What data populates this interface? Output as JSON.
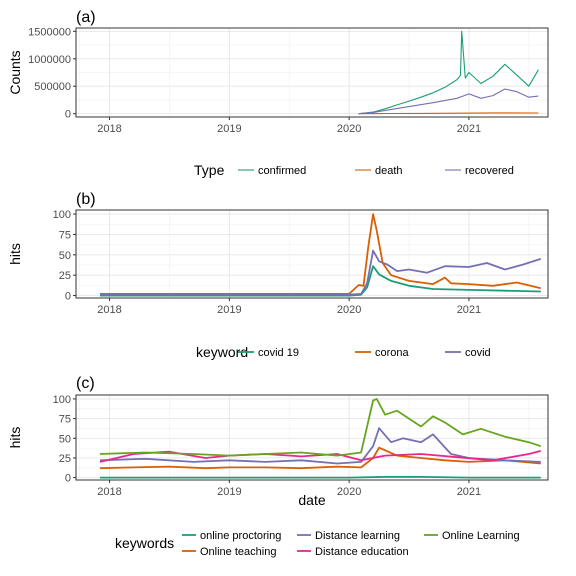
{
  "chart_data": [
    {
      "panel": "(a)",
      "type": "line",
      "ylabel": "Counts",
      "xlabel": "",
      "x_ticks": [
        "2018",
        "2019",
        "2020",
        "2021"
      ],
      "y_ticks": [
        "0",
        "500000",
        "1000000",
        "1500000"
      ],
      "xlim": [
        2017.72,
        2021.66
      ],
      "ylim": [
        -60000,
        1560000
      ],
      "legend": {
        "title": "Type",
        "placement": "bottom"
      },
      "series": [
        {
          "name": "confirmed",
          "color": "#1b9e77",
          "x": [
            2020.08,
            2020.2,
            2020.3,
            2020.4,
            2020.5,
            2020.6,
            2020.7,
            2020.8,
            2020.9,
            2020.93,
            2020.94,
            2020.97,
            2021.0,
            2021.1,
            2021.2,
            2021.3,
            2021.4,
            2021.5,
            2021.58
          ],
          "y": [
            0,
            30000,
            90000,
            160000,
            230000,
            300000,
            380000,
            480000,
            620000,
            700000,
            1500000,
            650000,
            750000,
            550000,
            680000,
            900000,
            700000,
            500000,
            800000
          ]
        },
        {
          "name": "death",
          "color": "#d95f02",
          "x": [
            2020.08,
            2020.3,
            2020.6,
            2020.9,
            2021.2,
            2021.58
          ],
          "y": [
            0,
            3000,
            5000,
            10000,
            15000,
            12000
          ]
        },
        {
          "name": "recovered",
          "color": "#7570b3",
          "x": [
            2020.08,
            2020.2,
            2020.3,
            2020.5,
            2020.7,
            2020.9,
            2021.0,
            2021.1,
            2021.2,
            2021.3,
            2021.4,
            2021.5,
            2021.58
          ],
          "y": [
            0,
            20000,
            60000,
            130000,
            200000,
            280000,
            360000,
            280000,
            330000,
            450000,
            400000,
            300000,
            320000
          ]
        }
      ]
    },
    {
      "panel": "(b)",
      "type": "line",
      "ylabel": "hits",
      "xlabel": "",
      "x_ticks": [
        "2018",
        "2019",
        "2020",
        "2021"
      ],
      "y_ticks": [
        "0",
        "25",
        "50",
        "75",
        "100"
      ],
      "xlim": [
        2017.72,
        2021.66
      ],
      "ylim": [
        -3,
        105
      ],
      "legend": {
        "title": "keyword",
        "placement": "bottom"
      },
      "series": [
        {
          "name": "covid 19",
          "color": "#1b9e77",
          "x": [
            2017.92,
            2020.0,
            2020.1,
            2020.15,
            2020.2,
            2020.25,
            2020.35,
            2020.5,
            2020.7,
            2021.0,
            2021.3,
            2021.6
          ],
          "y": [
            0,
            0,
            1,
            10,
            36,
            26,
            18,
            12,
            8,
            7,
            6,
            5
          ]
        },
        {
          "name": "corona",
          "color": "#d95f02",
          "x": [
            2017.92,
            2020.0,
            2020.08,
            2020.12,
            2020.16,
            2020.2,
            2020.23,
            2020.28,
            2020.35,
            2020.5,
            2020.7,
            2020.8,
            2020.85,
            2021.0,
            2021.2,
            2021.4,
            2021.6
          ],
          "y": [
            2,
            2,
            13,
            12,
            60,
            100,
            80,
            40,
            25,
            18,
            14,
            22,
            15,
            14,
            12,
            16,
            9
          ]
        },
        {
          "name": "covid",
          "color": "#7570b3",
          "x": [
            2017.92,
            2020.0,
            2020.1,
            2020.15,
            2020.2,
            2020.25,
            2020.32,
            2020.4,
            2020.5,
            2020.65,
            2020.8,
            2021.0,
            2021.15,
            2021.3,
            2021.45,
            2021.6
          ],
          "y": [
            1,
            1,
            2,
            15,
            55,
            42,
            38,
            30,
            32,
            28,
            36,
            35,
            40,
            32,
            38,
            45
          ]
        }
      ]
    },
    {
      "panel": "(c)",
      "type": "line",
      "ylabel": "hits",
      "xlabel": "date",
      "x_ticks": [
        "2018",
        "2019",
        "2020",
        "2021"
      ],
      "y_ticks": [
        "0",
        "25",
        "50",
        "75",
        "100"
      ],
      "xlim": [
        2017.72,
        2021.66
      ],
      "ylim": [
        -3,
        105
      ],
      "legend": {
        "title": "keywords",
        "placement": "bottom"
      },
      "series": [
        {
          "name": "online proctoring",
          "color": "#1b9e77",
          "x": [
            2017.92,
            2020.0,
            2020.3,
            2020.6,
            2021.0,
            2021.6
          ],
          "y": [
            0,
            0,
            1,
            1,
            0,
            0
          ]
        },
        {
          "name": "Online teaching",
          "color": "#d95f02",
          "x": [
            2017.92,
            2018.2,
            2018.5,
            2018.8,
            2019.0,
            2019.3,
            2019.6,
            2019.9,
            2020.1,
            2020.2,
            2020.25,
            2020.4,
            2020.6,
            2020.8,
            2021.0,
            2021.3,
            2021.6
          ],
          "y": [
            12,
            13,
            14,
            12,
            13,
            13,
            12,
            14,
            13,
            25,
            38,
            28,
            25,
            22,
            20,
            22,
            18
          ]
        },
        {
          "name": "Distance learning",
          "color": "#7570b3",
          "x": [
            2017.92,
            2018.3,
            2018.7,
            2019.0,
            2019.3,
            2019.6,
            2019.9,
            2020.1,
            2020.2,
            2020.25,
            2020.35,
            2020.45,
            2020.6,
            2020.7,
            2020.85,
            2021.0,
            2021.3,
            2021.6
          ],
          "y": [
            22,
            24,
            20,
            22,
            20,
            22,
            18,
            20,
            40,
            63,
            45,
            50,
            45,
            55,
            30,
            25,
            22,
            20
          ]
        },
        {
          "name": "Distance education",
          "color": "#e7298a",
          "x": [
            2017.92,
            2018.2,
            2018.5,
            2018.8,
            2019.0,
            2019.3,
            2019.6,
            2019.9,
            2020.1,
            2020.3,
            2020.6,
            2020.9,
            2021.2,
            2021.5,
            2021.6
          ],
          "y": [
            20,
            30,
            33,
            25,
            28,
            30,
            27,
            30,
            22,
            28,
            30,
            26,
            22,
            30,
            34
          ]
        },
        {
          "name": "Online Learning",
          "color": "#66a61e",
          "x": [
            2017.92,
            2018.3,
            2018.7,
            2019.0,
            2019.3,
            2019.6,
            2019.9,
            2020.1,
            2020.2,
            2020.23,
            2020.3,
            2020.4,
            2020.5,
            2020.6,
            2020.7,
            2020.8,
            2020.95,
            2021.1,
            2021.3,
            2021.5,
            2021.6
          ],
          "y": [
            30,
            32,
            30,
            28,
            30,
            32,
            28,
            32,
            98,
            100,
            80,
            85,
            75,
            65,
            78,
            70,
            55,
            62,
            52,
            45,
            40
          ]
        }
      ]
    }
  ]
}
